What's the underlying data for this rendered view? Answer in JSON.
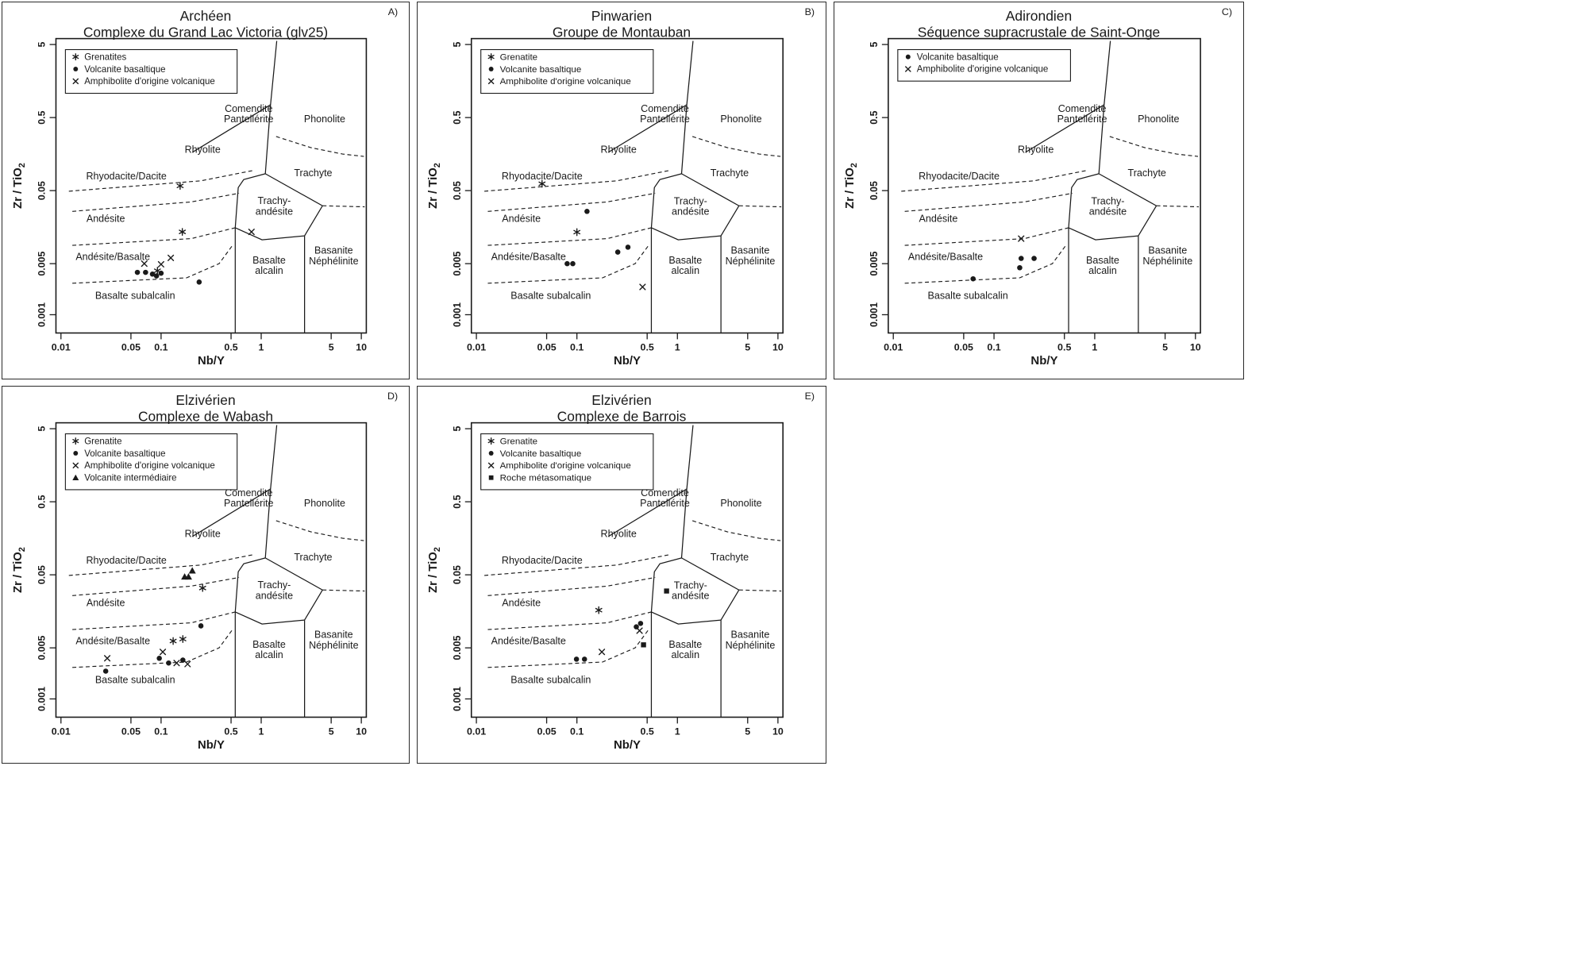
{
  "colors": {
    "ink": "#1a1a1a",
    "background": "#ffffff"
  },
  "chart_data": {
    "type": "scatter",
    "scale": "log-log",
    "diagram": "Zr/TiO2 vs Nb/Y classification volcanique",
    "x_axis": {
      "label": "Nb/Y",
      "ticks": [
        "0.01",
        "0.05",
        "0.1",
        "0.5",
        "1",
        "5",
        "10"
      ],
      "range": [
        0.01,
        10
      ]
    },
    "y_axis": {
      "label_main": "Zr / TiO",
      "label_sub": "2",
      "ticks": [
        "5",
        "0.5",
        "0.05",
        "0.005",
        "0.001"
      ],
      "range": [
        0.001,
        5
      ]
    },
    "field_labels": [
      {
        "lines": [
          "Comendite",
          "Pantellérite"
        ],
        "x": 0.75,
        "y": 0.57
      },
      {
        "lines": [
          "Phonolite"
        ],
        "x": 4.3,
        "y": 0.48
      },
      {
        "lines": [
          "Rhyolite"
        ],
        "x": 0.26,
        "y": 0.185
      },
      {
        "lines": [
          "Trachyte"
        ],
        "x": 3.3,
        "y": 0.088
      },
      {
        "lines": [
          "Rhyodacite/Dacite"
        ],
        "x": 0.045,
        "y": 0.08
      },
      {
        "lines": [
          "Andésite"
        ],
        "x": 0.028,
        "y": 0.021
      },
      {
        "lines": [
          "Trachy-",
          "andésite"
        ],
        "x": 1.35,
        "y": 0.031
      },
      {
        "lines": [
          "Andésite/Basalte"
        ],
        "x": 0.033,
        "y": 0.0063
      },
      {
        "lines": [
          "Basalte",
          "alcalin"
        ],
        "x": 1.2,
        "y": 0.0048
      },
      {
        "lines": [
          "Basanite",
          "Néphélinite"
        ],
        "x": 5.3,
        "y": 0.0065
      },
      {
        "lines": [
          "Basalte subalcalin"
        ],
        "x": 0.055,
        "y": 0.00185
      }
    ],
    "boundaries": {
      "solid": [
        [
          [
            1.43,
            5.6
          ],
          [
            1.24,
            0.75
          ],
          [
            1.1,
            0.085
          ]
        ],
        [
          [
            1.24,
            0.75
          ],
          [
            0.205,
            0.167
          ]
        ],
        [
          [
            1.1,
            0.085
          ],
          [
            0.67,
            0.071
          ],
          [
            0.59,
            0.055
          ],
          [
            0.55,
            0.0155
          ]
        ],
        [
          [
            0.55,
            0.0155
          ],
          [
            0.55,
            0.00056
          ]
        ],
        [
          [
            0.55,
            0.0155
          ],
          [
            1.02,
            0.0106
          ],
          [
            2.71,
            0.012
          ]
        ],
        [
          [
            2.71,
            0.012
          ],
          [
            2.71,
            0.00056
          ]
        ],
        [
          [
            2.71,
            0.012
          ],
          [
            4.1,
            0.031
          ]
        ],
        [
          [
            4.1,
            0.031
          ],
          [
            1.1,
            0.085
          ]
        ]
      ],
      "dashed": [
        [
          [
            0.012,
            0.049
          ],
          [
            0.25,
            0.068
          ],
          [
            0.85,
            0.095
          ]
        ],
        [
          [
            0.013,
            0.026
          ],
          [
            0.2,
            0.035
          ],
          [
            0.6,
            0.046
          ]
        ],
        [
          [
            0.013,
            0.0089
          ],
          [
            0.2,
            0.011
          ],
          [
            0.55,
            0.0155
          ]
        ],
        [
          [
            0.013,
            0.0027
          ],
          [
            0.18,
            0.0032
          ],
          [
            0.38,
            0.005
          ],
          [
            0.52,
            0.009
          ]
        ],
        [
          [
            4.1,
            0.031
          ],
          [
            10.8,
            0.03
          ]
        ],
        [
          [
            1.41,
            0.275
          ],
          [
            3.13,
            0.194
          ],
          [
            6.5,
            0.158
          ],
          [
            10.6,
            0.147
          ]
        ]
      ]
    },
    "panels": [
      {
        "corner_label": "A)",
        "title": "Archéen",
        "subtitle": "Complexe du Grand Lac Victoria (glv25)",
        "legend": [
          {
            "symbol": "asterisk",
            "label": "Grenatites"
          },
          {
            "symbol": "circle",
            "label": "Volcanite basaltique"
          },
          {
            "symbol": "x",
            "label": "Amphibolite d'origine volcanique"
          }
        ],
        "series": [
          {
            "name": "Grenatites",
            "symbol": "asterisk",
            "points": [
              [
                0.155,
                0.058
              ],
              [
                0.163,
                0.0136
              ],
              [
                0.092,
                0.004
              ]
            ]
          },
          {
            "name": "Volcanite basaltique",
            "symbol": "circle",
            "points": [
              [
                0.058,
                0.0038
              ],
              [
                0.07,
                0.0038
              ],
              [
                0.082,
                0.0036
              ],
              [
                0.09,
                0.0034
              ],
              [
                0.1,
                0.0037
              ],
              [
                0.24,
                0.0028
              ]
            ]
          },
          {
            "name": "Amphibolite d'origine volcanique",
            "symbol": "x",
            "points": [
              [
                0.068,
                0.005
              ],
              [
                0.125,
                0.006
              ],
              [
                0.1,
                0.0049
              ],
              [
                0.8,
                0.0136
              ]
            ]
          }
        ]
      },
      {
        "corner_label": "B)",
        "title": "Pinwarien",
        "subtitle": "Groupe de Montauban",
        "legend": [
          {
            "symbol": "asterisk",
            "label": "Grenatite"
          },
          {
            "symbol": "circle",
            "label": "Volcanite basaltique"
          },
          {
            "symbol": "x",
            "label": "Amphibolite d'origine volcanique"
          }
        ],
        "series": [
          {
            "name": "Grenatite",
            "symbol": "asterisk",
            "points": [
              [
                0.045,
                0.062
              ],
              [
                0.1,
                0.0135
              ]
            ]
          },
          {
            "name": "Volcanite basaltique",
            "symbol": "circle",
            "points": [
              [
                0.126,
                0.026
              ],
              [
                0.08,
                0.005
              ],
              [
                0.091,
                0.005
              ],
              [
                0.255,
                0.0072
              ],
              [
                0.322,
                0.0084
              ]
            ]
          },
          {
            "name": "Amphibolite d'origine volcanique",
            "symbol": "x",
            "points": [
              [
                0.45,
                0.0024
              ]
            ]
          }
        ]
      },
      {
        "corner_label": "C)",
        "title": "Adirondien",
        "subtitle": "Séquence supracrustale de Saint-Onge",
        "legend": [
          {
            "symbol": "circle",
            "label": "Volcanite basaltique"
          },
          {
            "symbol": "x",
            "label": "Amphibolite d'origine volcanique"
          }
        ],
        "series": [
          {
            "name": "Volcanite basaltique",
            "symbol": "circle",
            "points": [
              [
                0.062,
                0.0031
              ],
              [
                0.18,
                0.0044
              ],
              [
                0.186,
                0.0059
              ],
              [
                0.25,
                0.0059
              ]
            ]
          },
          {
            "name": "Amphibolite d'origine volcanique",
            "symbol": "x",
            "points": [
              [
                0.186,
                0.011
              ]
            ]
          }
        ]
      },
      {
        "corner_label": "D)",
        "title": "Elzivérien",
        "subtitle": "Complexe de Wabash",
        "legend": [
          {
            "symbol": "asterisk",
            "label": "Grenatite"
          },
          {
            "symbol": "circle",
            "label": "Volcanite basaltique"
          },
          {
            "symbol": "x",
            "label": "Amphibolite d'origine volcanique"
          },
          {
            "symbol": "triangle",
            "label": "Volcanite intermédiaire"
          }
        ],
        "series": [
          {
            "name": "Grenatite",
            "symbol": "asterisk",
            "points": [
              [
                0.26,
                0.033
              ],
              [
                0.132,
                0.0062
              ],
              [
                0.165,
                0.0066
              ]
            ]
          },
          {
            "name": "Volcanite basaltique",
            "symbol": "circle",
            "points": [
              [
                0.028,
                0.0024
              ],
              [
                0.096,
                0.0036
              ],
              [
                0.119,
                0.0031
              ],
              [
                0.165,
                0.0034
              ],
              [
                0.25,
                0.01
              ]
            ]
          },
          {
            "name": "Amphibolite d'origine volcanique",
            "symbol": "x",
            "points": [
              [
                0.029,
                0.0036
              ],
              [
                0.104,
                0.0044
              ],
              [
                0.143,
                0.0031
              ],
              [
                0.184,
                0.003
              ]
            ]
          },
          {
            "name": "Volcanite intermédiaire",
            "symbol": "triangle",
            "points": [
              [
                0.172,
                0.047
              ],
              [
                0.188,
                0.047
              ],
              [
                0.205,
                0.057
              ]
            ]
          }
        ]
      },
      {
        "corner_label": "E)",
        "title": "Elzivérien",
        "subtitle": "Complexe de Barrois",
        "legend": [
          {
            "symbol": "asterisk",
            "label": "Grenatite"
          },
          {
            "symbol": "circle",
            "label": "Volcanite basaltique"
          },
          {
            "symbol": "x",
            "label": "Amphibolite d'origine volcanique"
          },
          {
            "symbol": "square",
            "label": "Roche métasomatique"
          }
        ],
        "series": [
          {
            "name": "Grenatite",
            "symbol": "asterisk",
            "points": [
              [
                0.165,
                0.0164
              ]
            ]
          },
          {
            "name": "Volcanite basaltique",
            "symbol": "circle",
            "points": [
              [
                0.099,
                0.0035
              ],
              [
                0.119,
                0.0035
              ],
              [
                0.39,
                0.0097
              ],
              [
                0.43,
                0.0108
              ]
            ]
          },
          {
            "name": "Amphibolite d'origine volcanique",
            "symbol": "x",
            "points": [
              [
                0.177,
                0.0044
              ],
              [
                0.42,
                0.0086
              ]
            ]
          },
          {
            "name": "Roche métasomatique",
            "symbol": "square",
            "points": [
              [
                0.78,
                0.03
              ],
              [
                0.46,
                0.0055
              ]
            ]
          }
        ]
      }
    ]
  }
}
